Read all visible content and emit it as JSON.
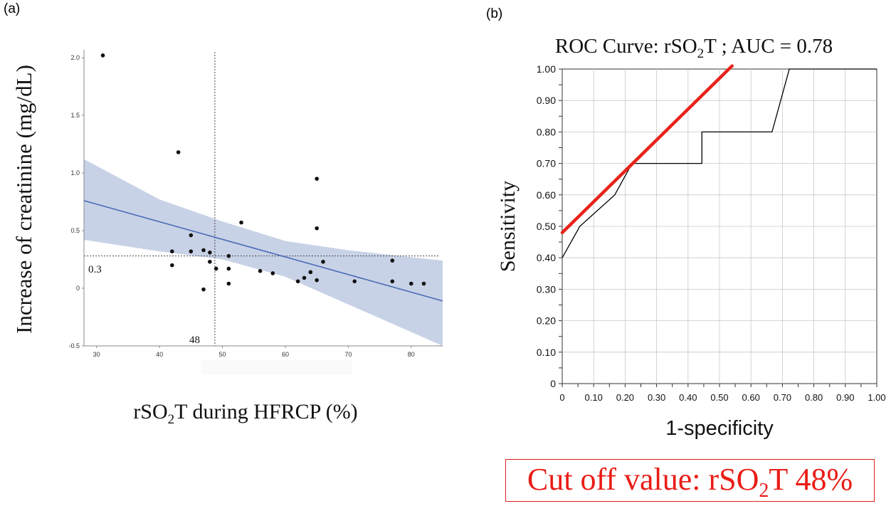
{
  "panel_a": {
    "label": "(a)",
    "ylabel": "Increase of creatinine (mg/dL)",
    "xlabel_pre": "rSO",
    "xlabel_sub": "2",
    "xlabel_post": "T during HFRCP (%)",
    "cutoff_x_label": "48",
    "cutoff_y_label": "0.3"
  },
  "panel_b": {
    "label": "(b)",
    "title_pre": "ROC Curve: rSO",
    "title_sub": "2",
    "title_post": "T ; AUC = 0.78",
    "xlabel": "1-specificity",
    "ylabel": "Sensitivity"
  },
  "cutoff_box": {
    "pre": "Cut off value: rSO",
    "sub": "2",
    "post": "T 48%"
  },
  "colors": {
    "regression_line": "#4a6bb5",
    "confidence_band": "#c5d0e6",
    "roc_line": "#000000",
    "tangent_line": "#e8231a",
    "cutoff_text": "#ea1c16"
  },
  "chart_data": [
    {
      "type": "scatter",
      "panel": "a",
      "x_ticks": [
        30,
        40,
        50,
        60,
        70,
        80
      ],
      "y_ticks": [
        "-0.5",
        "0",
        "0.5",
        "1.0",
        "1.5",
        "2.0"
      ],
      "xlim": [
        28,
        85
      ],
      "ylim": [
        -0.5,
        2.05
      ],
      "points": [
        {
          "x": 31,
          "y": 2.02
        },
        {
          "x": 43,
          "y": 1.18
        },
        {
          "x": 42,
          "y": 0.32
        },
        {
          "x": 42,
          "y": 0.2
        },
        {
          "x": 45,
          "y": 0.46
        },
        {
          "x": 45,
          "y": 0.32
        },
        {
          "x": 47,
          "y": 0.33
        },
        {
          "x": 47,
          "y": -0.01
        },
        {
          "x": 48,
          "y": 0.31
        },
        {
          "x": 48,
          "y": 0.23
        },
        {
          "x": 49,
          "y": 0.17
        },
        {
          "x": 51,
          "y": 0.28
        },
        {
          "x": 51,
          "y": 0.17
        },
        {
          "x": 51,
          "y": 0.04
        },
        {
          "x": 53,
          "y": 0.57
        },
        {
          "x": 56,
          "y": 0.15
        },
        {
          "x": 58,
          "y": 0.13
        },
        {
          "x": 62,
          "y": 0.06
        },
        {
          "x": 63,
          "y": 0.09
        },
        {
          "x": 64,
          "y": 0.14
        },
        {
          "x": 65,
          "y": 0.95
        },
        {
          "x": 65,
          "y": 0.52
        },
        {
          "x": 65,
          "y": 0.07
        },
        {
          "x": 66,
          "y": 0.23
        },
        {
          "x": 71,
          "y": 0.06
        },
        {
          "x": 77,
          "y": 0.24
        },
        {
          "x": 77,
          "y": 0.06
        },
        {
          "x": 80,
          "y": 0.04
        },
        {
          "x": 82,
          "y": 0.04
        }
      ],
      "regression": {
        "x": [
          28,
          85
        ],
        "y": [
          0.76,
          -0.11
        ]
      },
      "confidence_band": {
        "x": [
          28,
          40,
          50,
          60,
          70,
          85
        ],
        "upper": [
          1.12,
          0.77,
          0.58,
          0.41,
          0.33,
          0.24
        ],
        "lower": [
          0.42,
          0.32,
          0.25,
          0.1,
          -0.14,
          -0.5
        ]
      },
      "cutoff_x": 48.8,
      "cutoff_y": 0.28
    },
    {
      "type": "line",
      "panel": "b",
      "x_ticks": [
        "0",
        "0.10",
        "0.20",
        "0.30",
        "0.40",
        "0.50",
        "0.60",
        "0.70",
        "0.80",
        "0.90",
        "1.00"
      ],
      "y_ticks": [
        "0",
        "0.10",
        "0.20",
        "0.30",
        "0.40",
        "0.50",
        "0.60",
        "0.70",
        "0.80",
        "0.90",
        "1.00"
      ],
      "xlim": [
        0,
        1
      ],
      "ylim": [
        0,
        1
      ],
      "roc": {
        "x": [
          0,
          0,
          0.056,
          0.167,
          0.222,
          0.444,
          0.444,
          0.667,
          0.722,
          1.0
        ],
        "y": [
          0.4,
          0.4,
          0.5,
          0.6,
          0.7,
          0.7,
          0.8,
          0.8,
          1.0,
          1.0
        ]
      },
      "tangent": {
        "x": [
          0,
          0.54
        ],
        "y": [
          0.48,
          1.01
        ]
      }
    }
  ]
}
